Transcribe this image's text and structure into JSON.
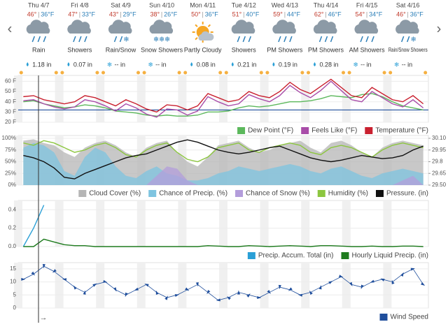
{
  "forecast": {
    "days": [
      {
        "day": "Thu 4/7",
        "hi": "46°",
        "lo": "36°F",
        "condition": "Rain",
        "precip": "1.18 in"
      },
      {
        "day": "Fri 4/8",
        "hi": "47°",
        "lo": "33°F",
        "condition": "Showers",
        "precip": "0.07 in"
      },
      {
        "day": "Sat 4/9",
        "hi": "43°",
        "lo": "29°F",
        "condition": "Rain/Snow",
        "precip": "-- in"
      },
      {
        "day": "Sun 4/10",
        "hi": "38°",
        "lo": "26°F",
        "condition": "Snow Showers",
        "precip": "-- in"
      },
      {
        "day": "Mon 4/11",
        "hi": "50°",
        "lo": "36°F",
        "condition": "Partly Cloudy",
        "precip": "0.08 in"
      },
      {
        "day": "Tue 4/12",
        "hi": "51°",
        "lo": "40°F",
        "condition": "Showers",
        "precip": "0.21 in"
      },
      {
        "day": "Wed 4/13",
        "hi": "59°",
        "lo": "44°F",
        "condition": "PM Showers",
        "precip": "0.19 in"
      },
      {
        "day": "Thu 4/14",
        "hi": "62°",
        "lo": "46°F",
        "condition": "PM Showers",
        "precip": "0.28 in"
      },
      {
        "day": "Fri 4/15",
        "hi": "54°",
        "lo": "34°F",
        "condition": "AM Showers",
        "precip": "-- in"
      },
      {
        "day": "Sat 4/16",
        "hi": "46°",
        "lo": "36°F",
        "condition": "Rain/Snow Showers",
        "precip": "-- in"
      }
    ]
  },
  "chart_data": [
    {
      "type": "line",
      "ylim": [
        20,
        63
      ],
      "yticks": [
        {
          "value": 60,
          "label": "60 F"
        },
        {
          "value": 50,
          "label": "50 F"
        },
        {
          "value": 40,
          "label": "40 F"
        },
        {
          "value": 30,
          "label": "30 F"
        },
        {
          "value": 20,
          "label": "20 F"
        }
      ],
      "series": [
        {
          "name": "Dew Point (°F)",
          "color": "#5cb85c",
          "style": "line",
          "values": [
            40,
            41,
            38,
            36,
            34,
            35,
            37,
            36,
            34,
            31,
            30,
            29,
            27,
            26,
            27,
            26,
            26,
            27,
            30,
            30,
            31,
            34,
            36,
            35,
            36,
            38,
            40,
            40,
            41,
            43,
            46,
            45,
            44,
            47,
            48,
            45,
            40,
            36,
            34,
            32
          ]
        },
        {
          "name": "Feels Like (°F)",
          "color": "#a84ca8",
          "style": "line",
          "values": [
            41,
            42,
            38,
            35,
            33,
            35,
            42,
            40,
            36,
            31,
            38,
            34,
            28,
            25,
            33,
            32,
            27,
            31,
            45,
            40,
            36,
            38,
            47,
            43,
            40,
            46,
            56,
            49,
            44,
            51,
            60,
            51,
            42,
            40,
            50,
            44,
            38,
            35,
            42,
            34
          ]
        },
        {
          "name": "Temperature (°F)",
          "color": "#c9202f",
          "style": "line",
          "values": [
            45,
            46,
            42,
            40,
            38,
            40,
            46,
            44,
            40,
            36,
            42,
            38,
            33,
            30,
            37,
            36,
            32,
            36,
            48,
            44,
            40,
            42,
            50,
            46,
            44,
            50,
            59,
            52,
            48,
            55,
            62,
            54,
            46,
            44,
            54,
            48,
            42,
            40,
            46,
            38
          ]
        }
      ],
      "hline": 32
    },
    {
      "type": "line",
      "ylim": [
        0,
        100
      ],
      "y2lim": [
        29.5,
        30.1
      ],
      "yticks": [
        {
          "value": 100,
          "label": "100%"
        },
        {
          "value": 75,
          "label": "75%"
        },
        {
          "value": 50,
          "label": "50%"
        },
        {
          "value": 25,
          "label": "25%"
        },
        {
          "value": 0,
          "label": "0%"
        }
      ],
      "y2ticks": [
        {
          "value": 30.1,
          "label": "30.10"
        },
        29.95,
        29.8,
        29.65,
        {
          "value": 29.5,
          "label": "29.50"
        }
      ],
      "series": [
        {
          "name": "Cloud Cover (%)",
          "color": "#b5b5b5",
          "style": "area",
          "values": [
            95,
            98,
            90,
            85,
            70,
            60,
            80,
            90,
            95,
            85,
            70,
            60,
            80,
            90,
            95,
            70,
            50,
            40,
            60,
            85,
            90,
            95,
            80,
            70,
            75,
            85,
            90,
            95,
            80,
            70,
            90,
            95,
            85,
            70,
            60,
            80,
            90,
            95,
            90,
            85
          ]
        },
        {
          "name": "Chance of Precip. (%)",
          "color": "#7ec4e0",
          "style": "area",
          "values": [
            80,
            90,
            85,
            70,
            30,
            20,
            60,
            80,
            70,
            40,
            20,
            15,
            30,
            40,
            25,
            20,
            10,
            10,
            15,
            25,
            30,
            40,
            35,
            30,
            35,
            40,
            45,
            40,
            30,
            25,
            35,
            40,
            30,
            20,
            15,
            25,
            30,
            35,
            30,
            25
          ]
        },
        {
          "name": "Chance of Snow (%)",
          "color": "#b39ddb",
          "style": "area",
          "values": [
            0,
            0,
            0,
            0,
            0,
            0,
            0,
            0,
            0,
            0,
            0,
            0,
            0,
            20,
            40,
            35,
            10,
            0,
            0,
            0,
            0,
            0,
            0,
            0,
            0,
            0,
            0,
            0,
            0,
            0,
            0,
            0,
            0,
            0,
            0,
            0,
            0,
            10,
            20,
            0
          ]
        },
        {
          "name": "Humidity (%)",
          "color": "#8cc63f",
          "style": "line",
          "values": [
            90,
            85,
            95,
            90,
            80,
            70,
            75,
            85,
            90,
            80,
            65,
            60,
            75,
            85,
            90,
            70,
            55,
            50,
            60,
            80,
            85,
            90,
            75,
            70,
            80,
            85,
            90,
            85,
            70,
            65,
            80,
            85,
            80,
            70,
            60,
            75,
            85,
            90,
            85,
            80
          ]
        },
        {
          "name": "Pressure. (in)",
          "color": "#111111",
          "style": "line",
          "axis": "y2",
          "values": [
            29.88,
            29.85,
            29.8,
            29.72,
            29.6,
            29.58,
            29.65,
            29.7,
            29.75,
            29.8,
            29.85,
            29.88,
            29.9,
            29.95,
            30,
            30.05,
            30.08,
            30.05,
            30,
            29.95,
            29.92,
            29.9,
            29.92,
            29.95,
            29.98,
            30,
            29.95,
            29.9,
            29.85,
            29.82,
            29.8,
            29.82,
            29.85,
            29.88,
            29.86,
            29.84,
            29.85,
            29.88,
            29.95,
            30
          ]
        }
      ]
    },
    {
      "type": "line",
      "ylim": [
        0,
        0.47
      ],
      "yticks": [
        0.4,
        0.2,
        {
          "value": 0,
          "label": "0.0"
        }
      ],
      "series": [
        {
          "name": "Precip. Accum. Total (in)",
          "color": "#2a9fd6",
          "style": "line",
          "values": [
            0,
            0.2,
            0.45,
            null,
            null,
            null,
            null,
            null,
            null,
            null,
            null,
            null,
            null,
            null,
            null,
            null,
            null,
            null,
            null,
            null,
            null,
            null,
            null,
            null,
            null,
            null,
            null,
            null,
            null,
            null,
            null,
            null,
            null,
            null,
            null,
            null,
            null,
            null,
            null,
            null
          ]
        },
        {
          "name": "Hourly Liquid Precip. (in)",
          "color": "#1e7b1e",
          "style": "line",
          "values": [
            0,
            0,
            0.08,
            0.05,
            0.02,
            0.01,
            0.01,
            0,
            0,
            0,
            0,
            0,
            0,
            0,
            0,
            0,
            0,
            0,
            0.01,
            0.005,
            0,
            0,
            0.01,
            0.005,
            0,
            0.005,
            0.01,
            0.005,
            0,
            0.01,
            0.01,
            0.005,
            0,
            0,
            0.005,
            0,
            0,
            0.005,
            0.005,
            0
          ]
        }
      ]
    },
    {
      "type": "line",
      "ylim": [
        0,
        16.3
      ],
      "yticks": [
        15,
        10,
        5,
        0
      ],
      "series": [
        {
          "name": "Wind Speed",
          "color": "#1f4e9c",
          "style": "wind",
          "values": [
            11,
            13,
            16,
            14,
            11,
            8,
            6,
            9,
            10,
            7,
            5,
            7,
            9,
            6,
            4,
            5,
            7,
            9,
            6,
            3,
            4,
            6,
            5,
            4,
            6,
            8,
            7,
            5,
            6,
            8,
            10,
            12,
            9,
            8,
            10,
            11,
            10,
            13,
            15,
            9
          ]
        }
      ]
    }
  ]
}
